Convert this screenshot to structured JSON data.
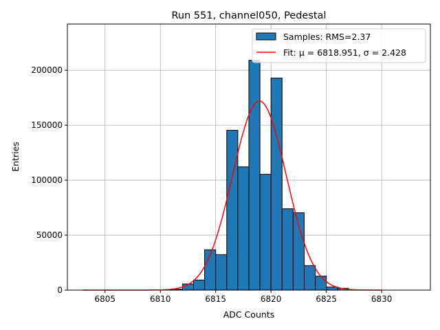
{
  "chart_data": {
    "type": "bar",
    "title": "Run 551, channel050, Pedestal",
    "xlabel": "ADC Counts",
    "ylabel": "Entries",
    "xlim": [
      6801.6,
      6834.4
    ],
    "ylim": [
      0,
      242000
    ],
    "grid": true,
    "xticks": [
      6805,
      6810,
      6815,
      6820,
      6825,
      6830
    ],
    "yticks": [
      0,
      50000,
      100000,
      150000,
      200000
    ],
    "bin_edges": [
      6811,
      6812,
      6813,
      6814,
      6815,
      6816,
      6817,
      6818,
      6819,
      6820,
      6821,
      6822,
      6823,
      6824,
      6825,
      6826,
      6827
    ],
    "values": [
      800,
      5600,
      9200,
      36700,
      32300,
      145400,
      112100,
      209000,
      105400,
      192900,
      74000,
      70400,
      22300,
      12700,
      2900,
      1700
    ],
    "fit": {
      "type": "gaussian",
      "mu": 6818.951,
      "sigma": 2.428,
      "amplitude": 172000,
      "range": [
        6803,
        6830
      ]
    },
    "legend": {
      "placement": "top-right",
      "entries": [
        "Samples: RMS=2.37",
        "Fit: μ = 6818.951, σ = 2.428"
      ]
    },
    "colors": {
      "bar": "#1f77b4",
      "fit": "#ff0000"
    }
  }
}
